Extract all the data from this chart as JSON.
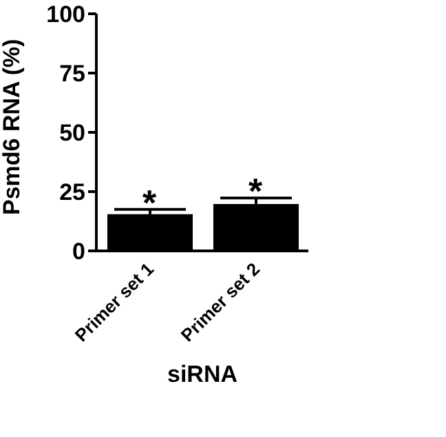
{
  "chart_data": {
    "type": "bar",
    "categories": [
      "Primer set 1",
      "Primer set 2"
    ],
    "values": [
      15.5,
      19.8
    ],
    "errors": [
      2,
      2.5
    ],
    "color": "#000000",
    "xlabel": "siRNA",
    "ylabel": "Psmd6 RNA (%)",
    "ylim": [
      0,
      100
    ],
    "yticks": [
      0,
      25,
      50,
      75,
      100
    ],
    "grid": false,
    "legend": false,
    "annotations": [
      {
        "text": "*",
        "x": "Primer set 1",
        "y": 17.5
      },
      {
        "text": "*",
        "x": "Primer set 2",
        "y": 22.3
      }
    ]
  }
}
